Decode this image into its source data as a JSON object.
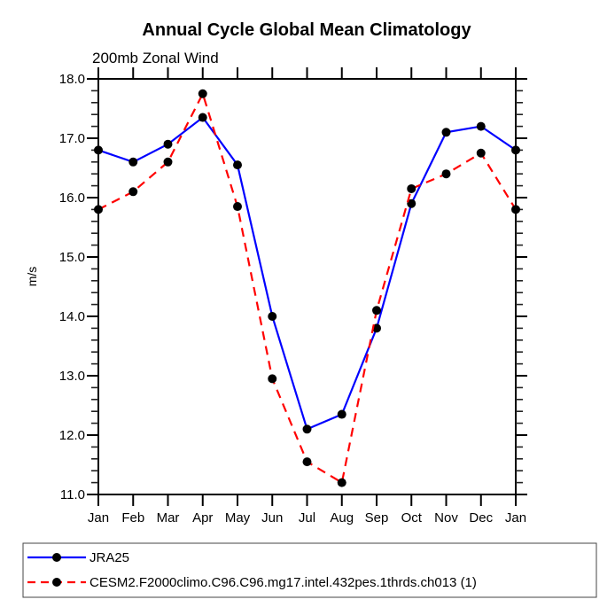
{
  "chart_data": {
    "type": "line",
    "title": "Annual Cycle Global Mean Climatology",
    "subtitle": "200mb Zonal Wind",
    "ylabel": "m/s",
    "categories": [
      "Jan",
      "Feb",
      "Mar",
      "Apr",
      "May",
      "Jun",
      "Jul",
      "Aug",
      "Sep",
      "Oct",
      "Nov",
      "Dec",
      "Jan"
    ],
    "ylim": [
      11.0,
      18.0
    ],
    "ytick_step": 1.0,
    "yminor_step": 0.2,
    "ytick_labels": [
      "11.0",
      "12.0",
      "13.0",
      "14.0",
      "15.0",
      "16.0",
      "17.0",
      "18.0"
    ],
    "grid": false,
    "legend_position": "bottom-left",
    "axis_color": "#000000",
    "minor_tick_color": "#222222",
    "marker_color": "#000000",
    "series": [
      {
        "name": "JRA25",
        "color": "#0000ff",
        "line_style": "solid",
        "marker": "filled-circle",
        "values": [
          16.8,
          16.6,
          16.9,
          17.35,
          16.55,
          14.0,
          12.1,
          12.35,
          13.8,
          15.9,
          17.1,
          17.2,
          16.8
        ]
      },
      {
        "name": "CESM2.F2000climo.C96.C96.mg17.intel.432pes.1thrds.ch013 (1)",
        "color": "#ff0000",
        "line_style": "dashed",
        "marker": "filled-circle",
        "values": [
          15.8,
          16.1,
          16.6,
          17.75,
          15.85,
          12.95,
          11.55,
          11.2,
          14.1,
          16.15,
          16.4,
          16.75,
          15.8
        ]
      }
    ]
  }
}
